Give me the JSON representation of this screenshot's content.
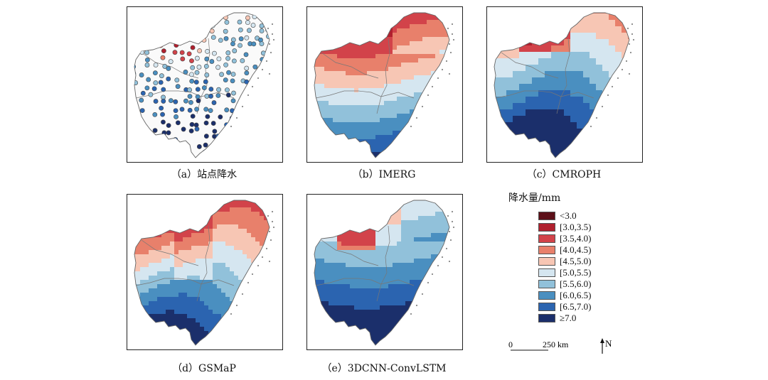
{
  "panels": [
    {
      "id": "a",
      "caption": "（a）站点降水",
      "type": "stations"
    },
    {
      "id": "b",
      "caption": "（b）IMERG",
      "type": "grid"
    },
    {
      "id": "c",
      "caption": "（c）CMROPH",
      "type": "grid"
    },
    {
      "id": "d",
      "caption": "（d）GSMaP",
      "type": "grid"
    },
    {
      "id": "e",
      "caption": "（e）3DCNN-ConvLSTM",
      "type": "grid"
    }
  ],
  "legend": {
    "title": "降水量/mm",
    "items": [
      {
        "label": "<3.0",
        "color": "#5c0f18"
      },
      {
        "label": "[3.0,3.5)",
        "color": "#b0202e"
      },
      {
        "label": "[3.5,4.0)",
        "color": "#d2434a"
      },
      {
        "label": "[4.0,4.5)",
        "color": "#e8806b"
      },
      {
        "label": "[4.5,5.0)",
        "color": "#f7c6b4"
      },
      {
        "label": "[5.0,5.5)",
        "color": "#d5e6f0"
      },
      {
        "label": "[5.5,6.0)",
        "color": "#91c1da"
      },
      {
        "label": "[6.0,6.5)",
        "color": "#4a8fc0"
      },
      {
        "label": "[6.5,7.0)",
        "color": "#2b64b0"
      },
      {
        "label": "≥7.0",
        "color": "#1b2f6b"
      }
    ]
  },
  "scale": {
    "zero": "0",
    "distance": "250 km"
  },
  "north": "N"
}
